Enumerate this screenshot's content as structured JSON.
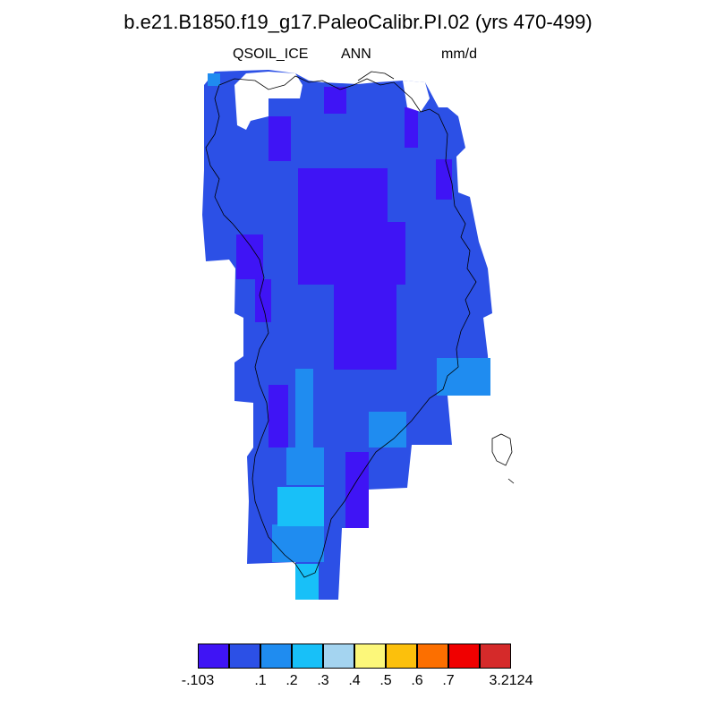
{
  "title": "b.e21.B1850.f19_g17.PaleoCalibr.PI.02 (yrs 470-499)",
  "variable": "QSOIL_ICE",
  "period": "ANN",
  "units": "mm/d",
  "colorbar": {
    "colors": [
      "#3f14f5",
      "#2c50e6",
      "#1f8cf0",
      "#18c0f8",
      "#a4d4f0",
      "#fcf77a",
      "#fcc00c",
      "#fc6f00",
      "#f00000",
      "#d52a2a"
    ],
    "labels": [
      "-.103",
      ".1",
      ".2",
      ".3",
      ".4",
      ".5",
      ".6",
      ".7",
      "3.2124"
    ]
  }
}
